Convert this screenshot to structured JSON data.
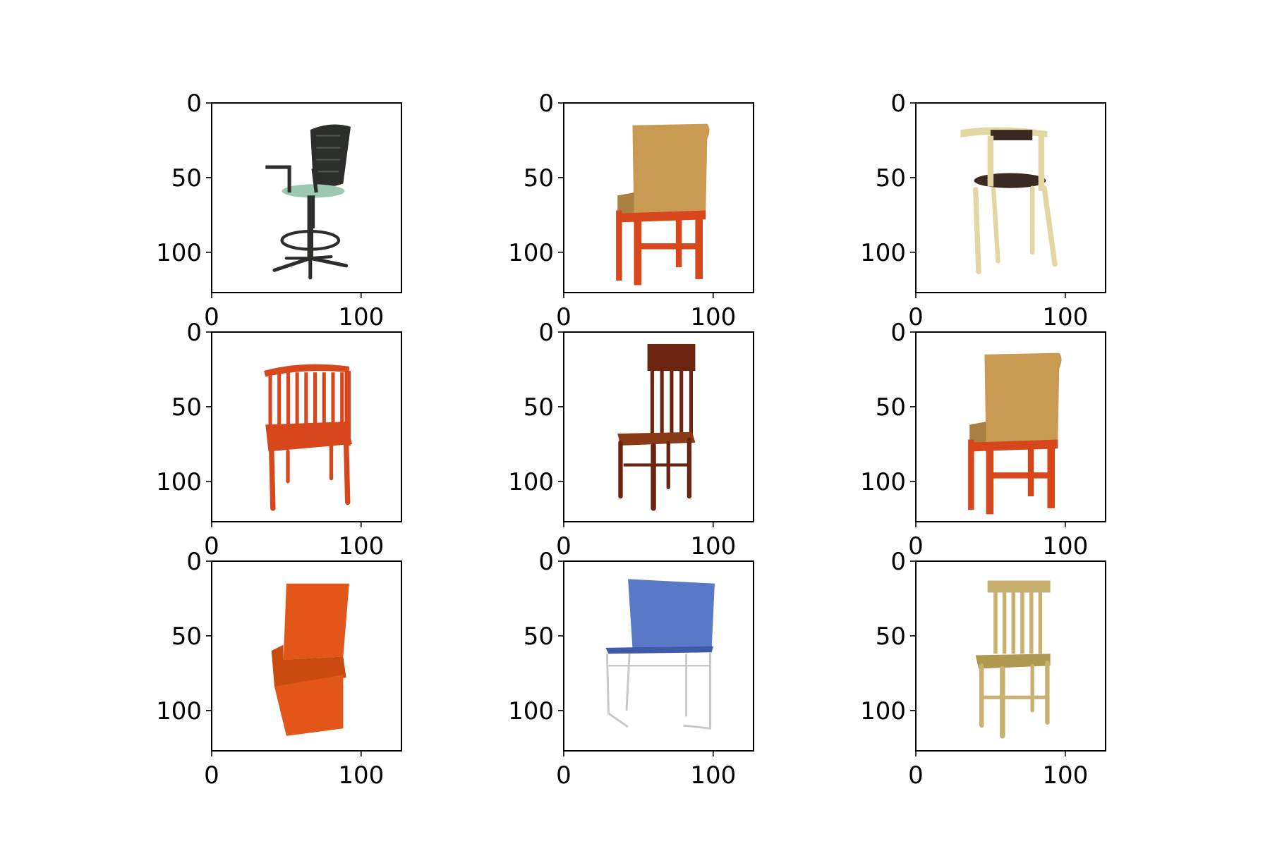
{
  "chart_data": {
    "type": "image_grid",
    "rows": 3,
    "cols": 3,
    "xlim": [
      0,
      127
    ],
    "ylim": [
      127,
      0
    ],
    "x_ticks": [
      0,
      100
    ],
    "y_ticks": [
      0,
      50,
      100
    ],
    "x_tick_labels": [
      "0",
      "100"
    ],
    "y_tick_labels": [
      "0",
      "50",
      "100"
    ],
    "panels": [
      {
        "depicts": "office-chair",
        "colors": {
          "main": "#2b2e2b",
          "seat": "#9cc7b0"
        }
      },
      {
        "depicts": "upholstered-chair-back-view",
        "colors": {
          "main": "#c89a52",
          "legs": "#d8461c"
        }
      },
      {
        "depicts": "spotted-stool-chair",
        "colors": {
          "main": "#e2d6a3",
          "seat": "#3a2b22"
        }
      },
      {
        "depicts": "slatted-armchair",
        "colors": {
          "main": "#d8461c"
        }
      },
      {
        "depicts": "tall-back-wooden-chair",
        "colors": {
          "main": "#6b2410"
        }
      },
      {
        "depicts": "upholstered-chair-back-view",
        "colors": {
          "main": "#c89a52",
          "legs": "#d8461c"
        }
      },
      {
        "depicts": "zigzag-chair",
        "colors": {
          "main": "#e2561a"
        }
      },
      {
        "depicts": "wire-frame-chair",
        "colors": {
          "main": "#5a78c8",
          "frame": "#c8c8c8"
        }
      },
      {
        "depicts": "spindle-back-wooden-chair",
        "colors": {
          "main": "#c8b070"
        }
      }
    ]
  }
}
